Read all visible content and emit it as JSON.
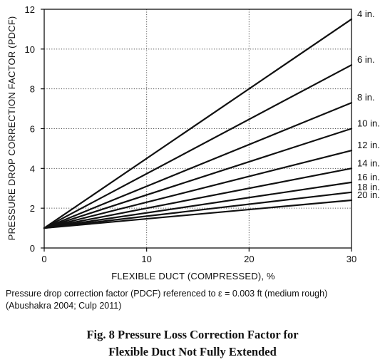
{
  "chart_data": {
    "type": "line",
    "xlabel": "FLEXIBLE DUCT (COMPRESSED), %",
    "ylabel": "PRESSURE DROP CORRECTION FACTOR (PDCF)",
    "xlim": [
      0,
      30
    ],
    "ylim": [
      0,
      12
    ],
    "xticks": [
      "0",
      "10",
      "20",
      "30"
    ],
    "yticks": [
      "0",
      "2",
      "4",
      "6",
      "8",
      "10",
      "12"
    ],
    "grid": "dotted at x = 10, 20 and y = 2, 4, 6, 8, 10",
    "x": [
      0,
      30
    ],
    "series": [
      {
        "name": "4 in.",
        "values": [
          1,
          11.5
        ]
      },
      {
        "name": "6 in.",
        "values": [
          1,
          9.2
        ]
      },
      {
        "name": "8 in.",
        "values": [
          1,
          7.3
        ]
      },
      {
        "name": "10 in.",
        "values": [
          1,
          6.0
        ]
      },
      {
        "name": "12 in.",
        "values": [
          1,
          4.9
        ]
      },
      {
        "name": "14 in.",
        "values": [
          1,
          4.0
        ]
      },
      {
        "name": "16 in.",
        "values": [
          1,
          3.3
        ]
      },
      {
        "name": "18 in.",
        "values": [
          1,
          2.8
        ]
      },
      {
        "name": "20 in.",
        "values": [
          1,
          2.4
        ]
      }
    ]
  },
  "note": {
    "line1": "Pressure drop correction factor (PDCF) referenced to ε = 0.003 ft (medium rough)",
    "line2": "(Abushakra 2004; Culp 2011)"
  },
  "caption": {
    "line1": "Fig. 8    Pressure Loss Correction Factor for",
    "line2": "Flexible Duct Not Fully Extended"
  }
}
